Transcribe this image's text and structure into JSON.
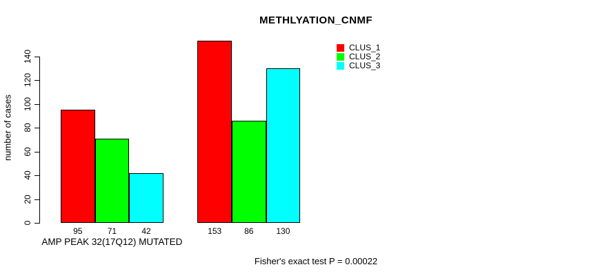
{
  "chart_data": {
    "type": "bar",
    "title": "METHLYATION_CNMF",
    "xlabel": "",
    "ylabel": "number of cases",
    "categories": [
      "AMP PEAK 32(17Q12) MUTATED",
      ""
    ],
    "series": [
      {
        "name": "CLUS_1",
        "color": "#FF0000",
        "values": [
          95,
          153
        ]
      },
      {
        "name": "CLUS_2",
        "color": "#00FF00",
        "values": [
          71,
          86
        ]
      },
      {
        "name": "CLUS_3",
        "color": "#00FFFF",
        "values": [
          42,
          130
        ]
      }
    ],
    "yticks": [
      0,
      20,
      40,
      60,
      80,
      100,
      120,
      140
    ],
    "ylim": [
      0,
      140
    ],
    "grid": false,
    "legend_position": "top-right",
    "bar_border_color": "#000000",
    "axis_color": "#000000"
  },
  "footer": {
    "text": "Fisher's exact test P = 0.00022"
  }
}
